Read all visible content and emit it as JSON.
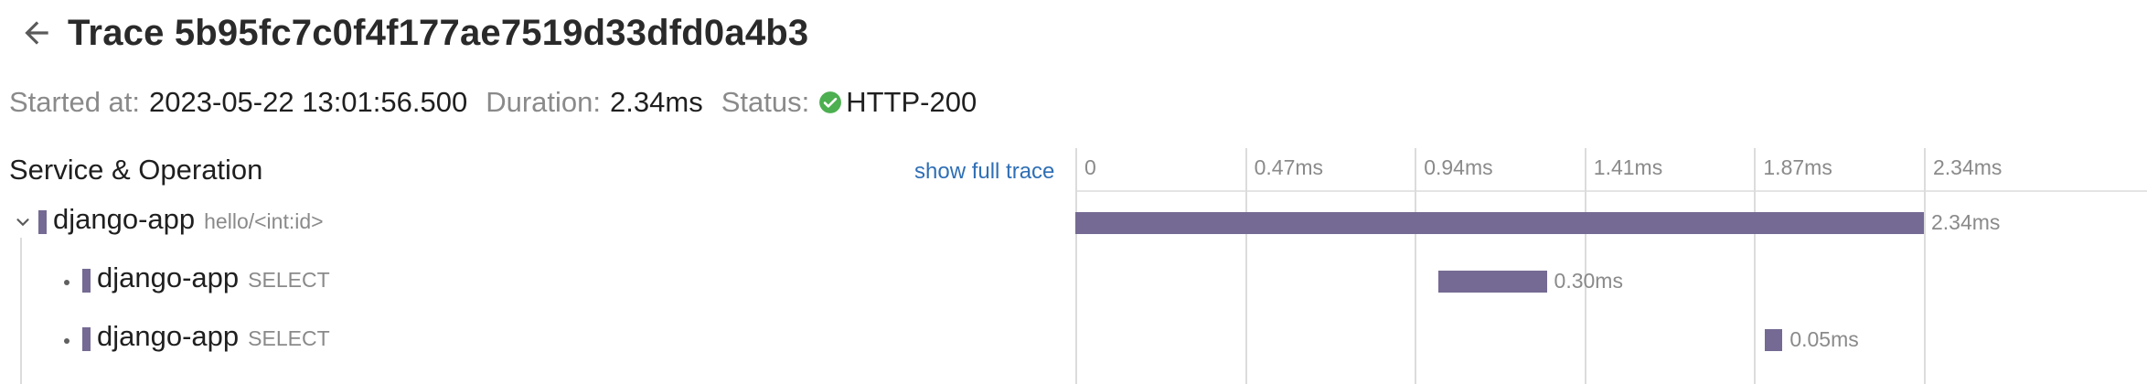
{
  "header": {
    "title": "Trace 5b95fc7c0f4f177ae7519d33dfd0a4b3"
  },
  "meta": {
    "started_label": "Started at:",
    "started_value": "2023-05-22 13:01:56.500",
    "duration_label": "Duration:",
    "duration_value": "2.34ms",
    "status_label": "Status:",
    "status_value": "HTTP-200",
    "status_color": "#4caf50"
  },
  "table": {
    "column_header": "Service & Operation",
    "show_full_trace": "show full trace",
    "ticks": [
      "0",
      "0.47ms",
      "0.94ms",
      "1.41ms",
      "1.87ms",
      "2.34ms"
    ],
    "bar_color": "#756a93",
    "total_ms": 2.34
  },
  "spans": [
    {
      "service": "django-app",
      "operation": "hello/<int:id>",
      "duration": "2.34ms",
      "start_ms": 0.0,
      "duration_ms": 2.34,
      "expanded": true,
      "depth": 0
    },
    {
      "service": "django-app",
      "operation": "SELECT",
      "duration": "0.30ms",
      "start_ms": 1.0,
      "duration_ms": 0.3,
      "depth": 1
    },
    {
      "service": "django-app",
      "operation": "SELECT",
      "duration": "0.05ms",
      "start_ms": 1.9,
      "duration_ms": 0.05,
      "depth": 1
    }
  ]
}
